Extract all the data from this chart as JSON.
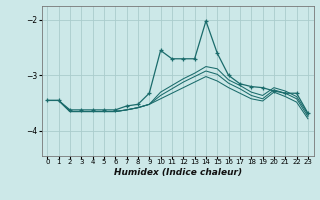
{
  "xlabel": "Humidex (Indice chaleur)",
  "bg_color": "#cce8e8",
  "grid_color": "#aacccc",
  "line_color": "#1a6b6b",
  "xlim": [
    -0.5,
    23.5
  ],
  "ylim": [
    -4.45,
    -1.75
  ],
  "yticks": [
    -4,
    -3,
    -2
  ],
  "xticks": [
    0,
    1,
    2,
    3,
    4,
    5,
    6,
    7,
    8,
    9,
    10,
    11,
    12,
    13,
    14,
    15,
    16,
    17,
    18,
    19,
    20,
    21,
    22,
    23
  ],
  "lines": [
    {
      "x": [
        0,
        1,
        2,
        3,
        4,
        5,
        6,
        7,
        8,
        9,
        10,
        11,
        12,
        13,
        14,
        15,
        16,
        17,
        18,
        19,
        20,
        21,
        22,
        23
      ],
      "y": [
        -3.45,
        -3.45,
        -3.62,
        -3.62,
        -3.62,
        -3.62,
        -3.62,
        -3.55,
        -3.52,
        -3.32,
        -2.55,
        -2.7,
        -2.7,
        -2.7,
        -2.02,
        -2.6,
        -3.0,
        -3.15,
        -3.2,
        -3.22,
        -3.28,
        -3.32,
        -3.32,
        -3.68
      ],
      "marker": true
    },
    {
      "x": [
        0,
        1,
        2,
        3,
        4,
        5,
        6,
        7,
        8,
        9,
        10,
        11,
        12,
        13,
        14,
        15,
        16,
        17,
        18,
        19,
        20,
        21,
        22,
        23
      ],
      "y": [
        -3.45,
        -3.45,
        -3.65,
        -3.65,
        -3.65,
        -3.65,
        -3.65,
        -3.62,
        -3.58,
        -3.52,
        -3.42,
        -3.32,
        -3.22,
        -3.12,
        -3.02,
        -3.1,
        -3.22,
        -3.32,
        -3.42,
        -3.46,
        -3.3,
        -3.38,
        -3.48,
        -3.78
      ],
      "marker": false
    },
    {
      "x": [
        0,
        1,
        2,
        3,
        4,
        5,
        6,
        7,
        8,
        9,
        10,
        11,
        12,
        13,
        14,
        15,
        16,
        17,
        18,
        19,
        20,
        21,
        22,
        23
      ],
      "y": [
        -3.45,
        -3.45,
        -3.65,
        -3.65,
        -3.65,
        -3.65,
        -3.65,
        -3.62,
        -3.58,
        -3.52,
        -3.36,
        -3.24,
        -3.12,
        -3.02,
        -2.92,
        -2.98,
        -3.14,
        -3.24,
        -3.36,
        -3.42,
        -3.26,
        -3.32,
        -3.42,
        -3.74
      ],
      "marker": false
    },
    {
      "x": [
        0,
        1,
        2,
        3,
        4,
        5,
        6,
        7,
        8,
        9,
        10,
        11,
        12,
        13,
        14,
        15,
        16,
        17,
        18,
        19,
        20,
        21,
        22,
        23
      ],
      "y": [
        -3.45,
        -3.45,
        -3.65,
        -3.65,
        -3.65,
        -3.65,
        -3.65,
        -3.62,
        -3.58,
        -3.52,
        -3.3,
        -3.18,
        -3.06,
        -2.96,
        -2.84,
        -2.88,
        -3.08,
        -3.18,
        -3.3,
        -3.36,
        -3.22,
        -3.28,
        -3.38,
        -3.7
      ],
      "marker": false
    }
  ]
}
